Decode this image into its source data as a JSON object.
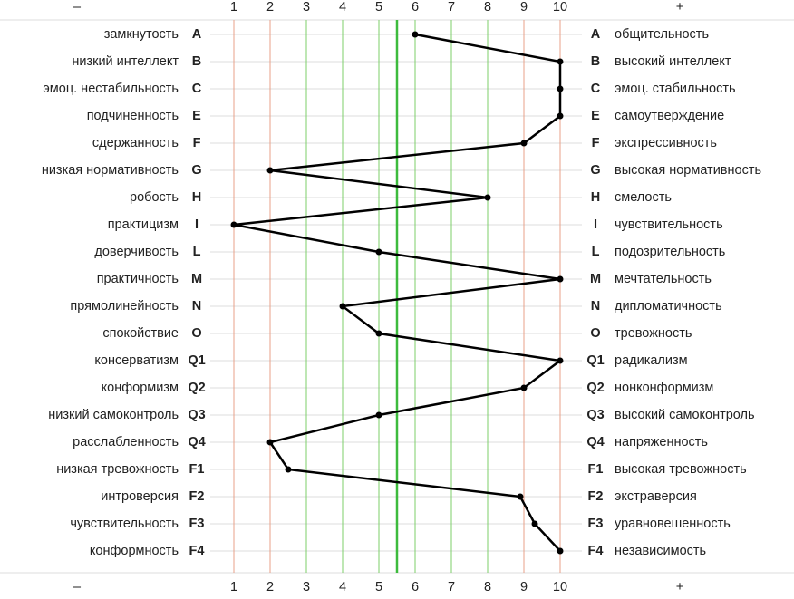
{
  "chart_data": {
    "type": "line",
    "minus_label": "–",
    "plus_label": "+",
    "categories": [
      "A",
      "B",
      "C",
      "E",
      "F",
      "G",
      "H",
      "I",
      "L",
      "M",
      "N",
      "O",
      "Q1",
      "Q2",
      "Q3",
      "Q4",
      "F1",
      "F2",
      "F3",
      "F4"
    ],
    "left_labels": [
      "замкнутость",
      "низкий интеллект",
      "эмоц. нестабильность",
      "подчиненность",
      "сдержанность",
      "низкая нормативность",
      "робость",
      "практицизм",
      "доверчивость",
      "практичность",
      "прямолинейность",
      "спокойствие",
      "консерватизм",
      "конформизм",
      "низкий самоконтроль",
      "расслабленность",
      "низкая тревожность",
      "интроверсия",
      "чувствительность",
      "конформность"
    ],
    "right_labels": [
      "общительность",
      "высокий интеллект",
      "эмоц. стабильность",
      "самоутверждение",
      "экспрессивность",
      "высокая нормативность",
      "смелость",
      "чувствительность",
      "подозрительность",
      "мечтательность",
      "дипломатичность",
      "тревожность",
      "радикализм",
      "нонконформизм",
      "высокий самоконтроль",
      "напряженность",
      "высокая тревожность",
      "экстраверсия",
      "уравновешенность",
      "независимость"
    ],
    "values": [
      6,
      10,
      10,
      10,
      9,
      2,
      8,
      1,
      5,
      10,
      4,
      5,
      10,
      9,
      5,
      2,
      2.5,
      8.9,
      9.3,
      10
    ],
    "color": "#000000",
    "xlim": [
      1,
      10
    ],
    "xticks": [
      1,
      2,
      3,
      4,
      5,
      6,
      7,
      8,
      9,
      10
    ],
    "xtick_colors": [
      "#e8a088",
      "#e8a088",
      "#7ccf6a",
      "#7ccf6a",
      "#7ccf6a",
      "#7ccf6a",
      "#7ccf6a",
      "#7ccf6a",
      "#e8a088",
      "#e8a088"
    ],
    "midline": 5.5,
    "midline_color": "#3dbb3d",
    "grid": true
  }
}
